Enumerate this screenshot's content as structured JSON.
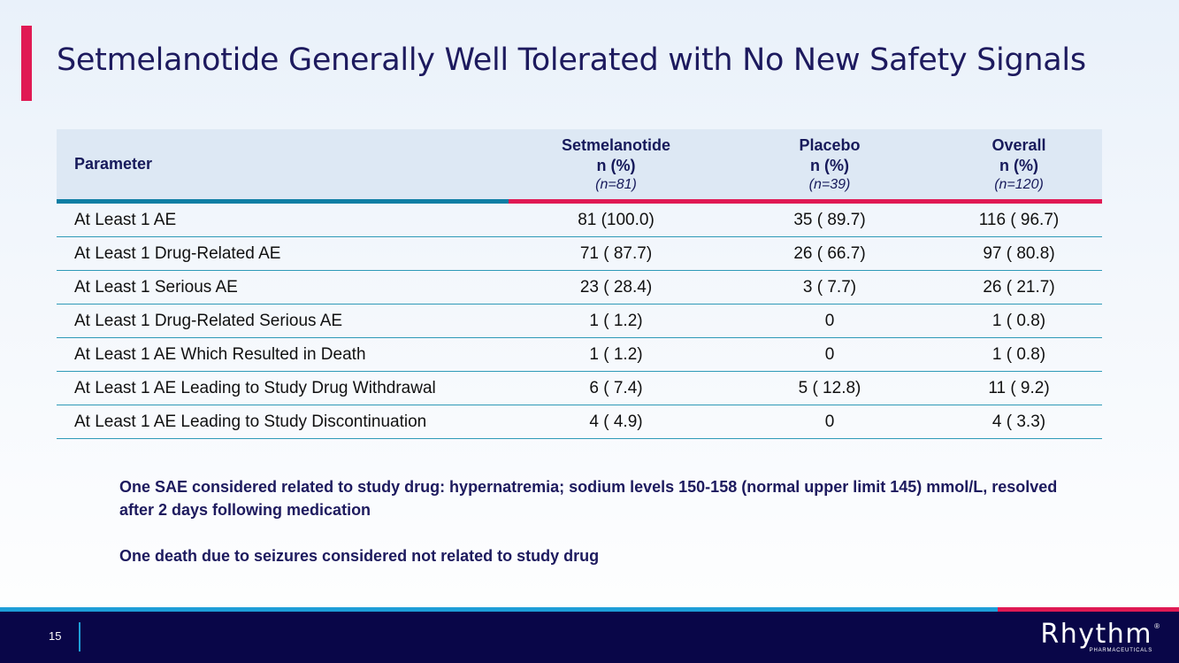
{
  "slide": {
    "title": "Setmelanotide Generally Well Tolerated with No New Safety Signals",
    "page_number": "15"
  },
  "table": {
    "headers": [
      {
        "label": "Parameter"
      },
      {
        "label": "Setmelanotide",
        "unit": "n (%)",
        "n": "(n=81)"
      },
      {
        "label": "Placebo",
        "unit": "n (%)",
        "n": "(n=39)"
      },
      {
        "label": "Overall",
        "unit": "n (%)",
        "n": "(n=120)"
      }
    ],
    "rows": [
      [
        "At Least 1 AE",
        "81 (100.0)",
        "35 ( 89.7)",
        "116 ( 96.7)"
      ],
      [
        "At Least 1 Drug-Related AE",
        "71 ( 87.7)",
        "26 ( 66.7)",
        "97 ( 80.8)"
      ],
      [
        "At Least 1 Serious AE",
        "23 ( 28.4)",
        "3 (  7.7)",
        "26 ( 21.7)"
      ],
      [
        "At Least 1 Drug-Related Serious AE",
        "1 (  1.2)",
        "0",
        "1 (  0.8)"
      ],
      [
        "At Least 1 AE Which Resulted in Death",
        "1 (  1.2)",
        "0",
        "1 (  0.8)"
      ],
      [
        "At Least 1 AE Leading to Study Drug Withdrawal",
        "6 (  7.4)",
        "5 ( 12.8)",
        "11 (  9.2)"
      ],
      [
        "At Least 1 AE Leading to Study Discontinuation",
        "4 (  4.9)",
        "0",
        "4 (  3.3)"
      ]
    ]
  },
  "notes": [
    "One SAE considered related to study drug: hypernatremia; sodium levels 150-158 (normal upper limit 145) mmol/L, resolved after 2 days following medication",
    "One death due to seizures considered not related to study drug"
  ],
  "logo": {
    "name": "Rhythm",
    "registered": "®",
    "subtitle": "PHARMACEUTICALS"
  },
  "colors": {
    "title": "#1d1a5e",
    "accent_pink": "#e01a54",
    "teal": "#0e7ea4",
    "footer_navy": "#090648",
    "footer_blue": "#1e9ed8"
  }
}
